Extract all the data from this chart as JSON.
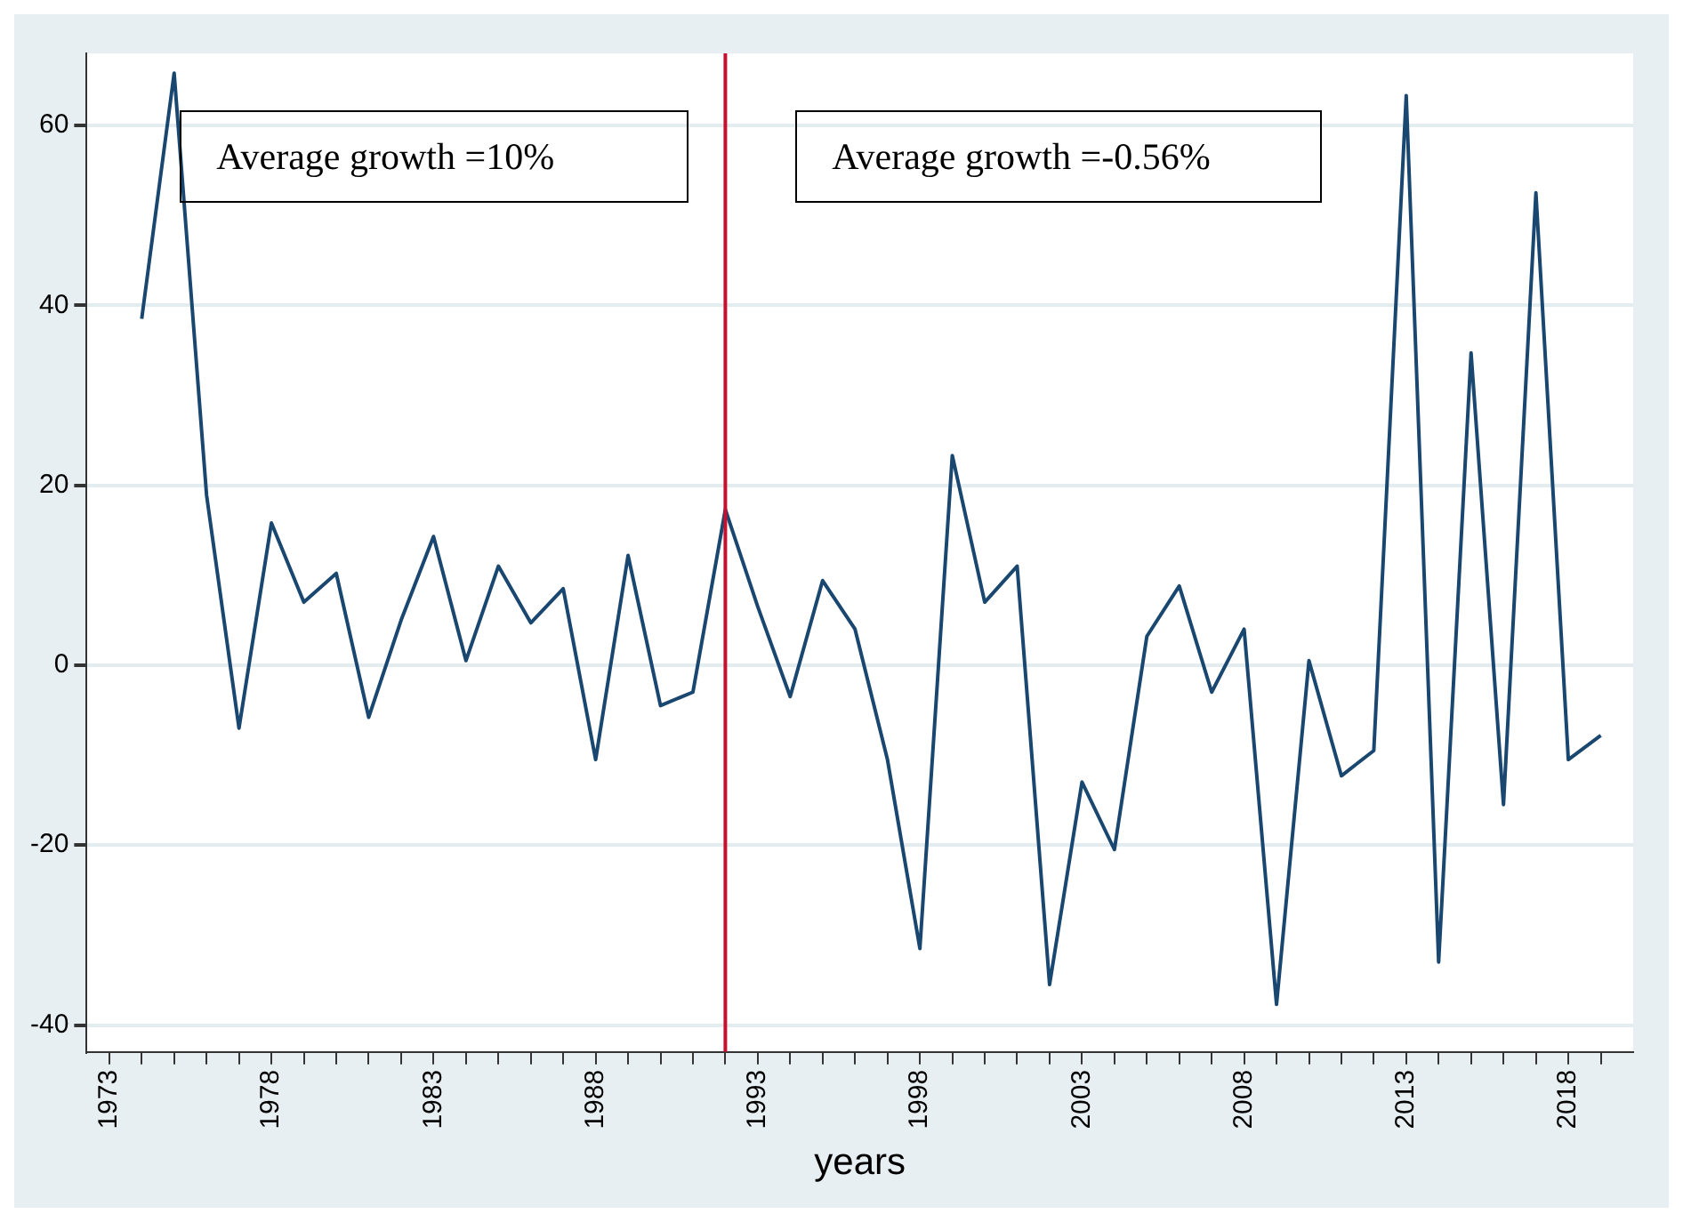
{
  "chart_data": {
    "type": "line",
    "xlabel": "years",
    "x": [
      1974,
      1975,
      1976,
      1977,
      1978,
      1979,
      1980,
      1981,
      1982,
      1983,
      1984,
      1985,
      1986,
      1987,
      1988,
      1989,
      1990,
      1991,
      1992,
      1993,
      1994,
      1995,
      1996,
      1997,
      1998,
      1999,
      2000,
      2001,
      2002,
      2003,
      2004,
      2005,
      2006,
      2007,
      2008,
      2009,
      2010,
      2011,
      2012,
      2013,
      2014,
      2015,
      2016,
      2017,
      2018,
      2019
    ],
    "series": [
      {
        "color": "#1a4770",
        "values": [
          38.5,
          65.8,
          18.9,
          -7,
          15.8,
          7,
          10.2,
          -5.8,
          5,
          14.3,
          0.5,
          11,
          4.7,
          8.5,
          -10.5,
          12.2,
          -4.5,
          -3,
          17.3,
          6.5,
          -3.5,
          9.4,
          4,
          -10.5,
          -31.5,
          23.3,
          7,
          11,
          -35.5,
          -13,
          -20.5,
          3.2,
          8.8,
          -3,
          4,
          -37.7,
          0.5,
          -12.3,
          -9.5,
          63.3,
          -33,
          34.7,
          -15.5,
          52.5,
          -10.5,
          -7.8
        ]
      }
    ],
    "xlim": [
      1972.3,
      2020
    ],
    "ylim": [
      -43,
      68
    ],
    "xticks": [
      1973,
      {
        "value": 1974,
        "label": null
      },
      {
        "value": 1975,
        "label": null
      },
      {
        "value": 1976,
        "label": null
      },
      {
        "value": 1977,
        "label": null
      },
      1978,
      {
        "value": 1979,
        "label": null
      },
      {
        "value": 1980,
        "label": null
      },
      {
        "value": 1981,
        "label": null
      },
      {
        "value": 1982,
        "label": null
      },
      1983,
      {
        "value": 1984,
        "label": null
      },
      {
        "value": 1985,
        "label": null
      },
      {
        "value": 1986,
        "label": null
      },
      {
        "value": 1987,
        "label": null
      },
      1988,
      {
        "value": 1989,
        "label": null
      },
      {
        "value": 1990,
        "label": null
      },
      {
        "value": 1991,
        "label": null
      },
      {
        "value": 1992,
        "label": null
      },
      1993,
      {
        "value": 1994,
        "label": null
      },
      {
        "value": 1995,
        "label": null
      },
      {
        "value": 1996,
        "label": null
      },
      {
        "value": 1997,
        "label": null
      },
      1998,
      {
        "value": 1999,
        "label": null
      },
      {
        "value": 2000,
        "label": null
      },
      {
        "value": 2001,
        "label": null
      },
      {
        "value": 2002,
        "label": null
      },
      2003,
      {
        "value": 2004,
        "label": null
      },
      {
        "value": 2005,
        "label": null
      },
      {
        "value": 2006,
        "label": null
      },
      {
        "value": 2007,
        "label": null
      },
      2008,
      {
        "value": 2009,
        "label": null
      },
      {
        "value": 2010,
        "label": null
      },
      {
        "value": 2011,
        "label": null
      },
      {
        "value": 2012,
        "label": null
      },
      2013,
      {
        "value": 2014,
        "label": null
      },
      {
        "value": 2015,
        "label": null
      },
      {
        "value": 2016,
        "label": null
      },
      {
        "value": 2017,
        "label": null
      },
      2018,
      {
        "value": 2019,
        "label": null
      }
    ],
    "yticks": [
      -40,
      -20,
      0,
      20,
      40,
      60
    ],
    "grid": "y",
    "legend": false,
    "marker": "none",
    "line_style": "solid",
    "ref_lines": [
      {
        "axis": "x",
        "value": 1992,
        "color": "#c8102e"
      }
    ],
    "annotations": [
      "Average growth =10%",
      "Average growth =-0.56%"
    ]
  }
}
